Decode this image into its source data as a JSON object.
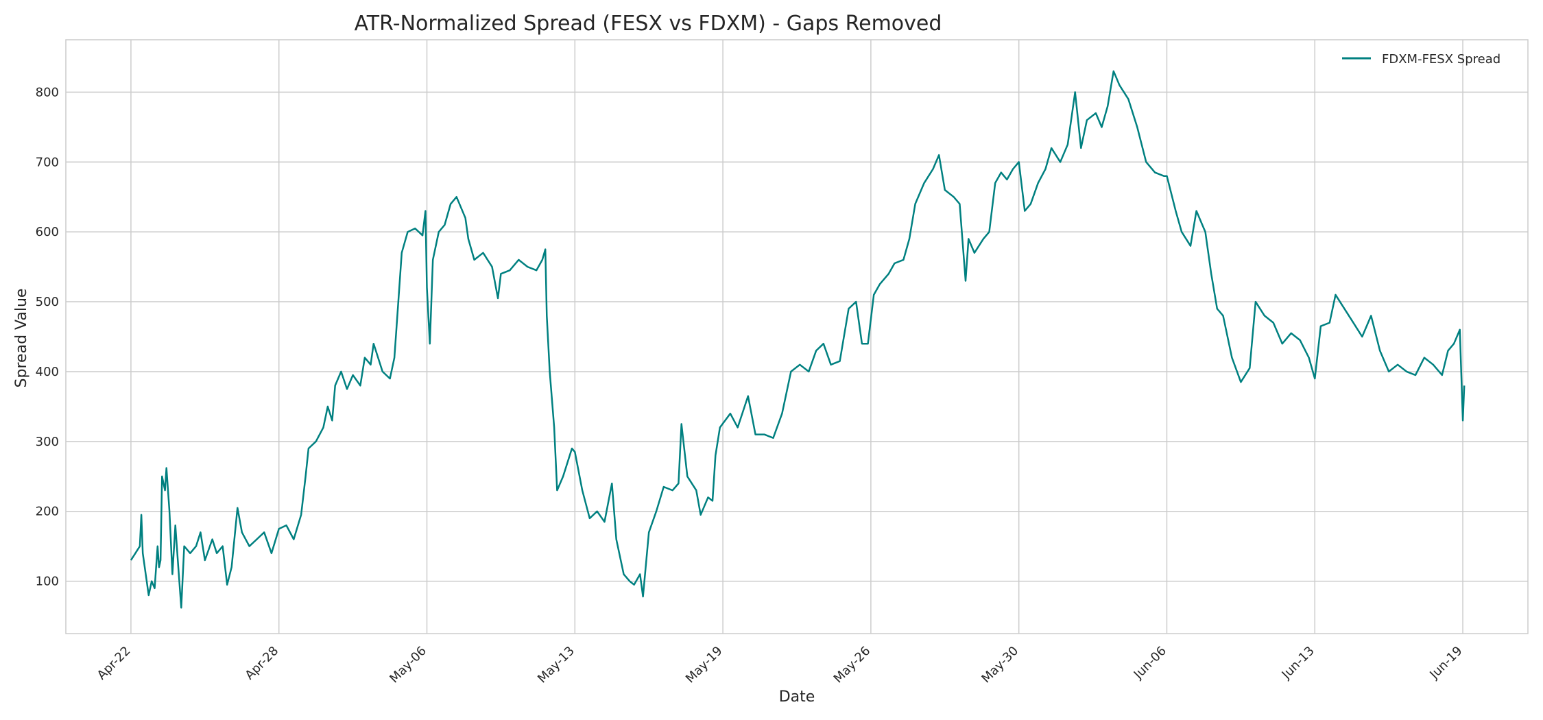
{
  "chart_data": {
    "type": "line",
    "title": "ATR-Normalized Spread (FESX vs FDXM) - Gaps Removed",
    "xlabel": "Date",
    "ylabel": "Spread Value",
    "x_unit": "bar index (gaps removed, 9 equal segments between labelled ticks)",
    "xlim": [
      -0.44,
      9.44
    ],
    "ylim": [
      25,
      875
    ],
    "x_ticks": [
      {
        "pos": 0,
        "label": "Apr-22"
      },
      {
        "pos": 1,
        "label": "Apr-28"
      },
      {
        "pos": 2,
        "label": "May-06"
      },
      {
        "pos": 3,
        "label": "May-13"
      },
      {
        "pos": 4,
        "label": "May-19"
      },
      {
        "pos": 5,
        "label": "May-26"
      },
      {
        "pos": 6,
        "label": "May-30"
      },
      {
        "pos": 7,
        "label": "Jun-06"
      },
      {
        "pos": 8,
        "label": "Jun-13"
      },
      {
        "pos": 9,
        "label": "Jun-19"
      }
    ],
    "y_ticks": [
      100,
      200,
      300,
      400,
      500,
      600,
      700,
      800
    ],
    "grid": true,
    "legend": {
      "position": "top-right"
    },
    "series": [
      {
        "name": "FDXM-FESX Spread",
        "color": "#008080",
        "points": [
          [
            0.0,
            130
          ],
          [
            0.03,
            140
          ],
          [
            0.06,
            150
          ],
          [
            0.07,
            195
          ],
          [
            0.08,
            140
          ],
          [
            0.1,
            110
          ],
          [
            0.12,
            80
          ],
          [
            0.14,
            100
          ],
          [
            0.16,
            90
          ],
          [
            0.18,
            150
          ],
          [
            0.19,
            120
          ],
          [
            0.2,
            130
          ],
          [
            0.21,
            250
          ],
          [
            0.23,
            230
          ],
          [
            0.24,
            262
          ],
          [
            0.26,
            200
          ],
          [
            0.28,
            110
          ],
          [
            0.3,
            180
          ],
          [
            0.32,
            120
          ],
          [
            0.34,
            62
          ],
          [
            0.36,
            150
          ],
          [
            0.4,
            140
          ],
          [
            0.44,
            150
          ],
          [
            0.47,
            170
          ],
          [
            0.5,
            130
          ],
          [
            0.55,
            160
          ],
          [
            0.58,
            140
          ],
          [
            0.62,
            150
          ],
          [
            0.65,
            95
          ],
          [
            0.68,
            120
          ],
          [
            0.72,
            205
          ],
          [
            0.75,
            170
          ],
          [
            0.8,
            150
          ],
          [
            0.85,
            160
          ],
          [
            0.9,
            170
          ],
          [
            0.95,
            140
          ],
          [
            1.0,
            175
          ],
          [
            1.05,
            180
          ],
          [
            1.1,
            160
          ],
          [
            1.15,
            195
          ],
          [
            1.18,
            250
          ],
          [
            1.2,
            290
          ],
          [
            1.25,
            300
          ],
          [
            1.3,
            320
          ],
          [
            1.33,
            350
          ],
          [
            1.36,
            330
          ],
          [
            1.38,
            380
          ],
          [
            1.42,
            400
          ],
          [
            1.46,
            375
          ],
          [
            1.5,
            395
          ],
          [
            1.55,
            380
          ],
          [
            1.58,
            420
          ],
          [
            1.62,
            410
          ],
          [
            1.64,
            440
          ],
          [
            1.7,
            400
          ],
          [
            1.75,
            390
          ],
          [
            1.78,
            420
          ],
          [
            1.8,
            480
          ],
          [
            1.83,
            570
          ],
          [
            1.87,
            600
          ],
          [
            1.92,
            605
          ],
          [
            1.97,
            595
          ],
          [
            1.99,
            630
          ],
          [
            2.0,
            520
          ],
          [
            2.02,
            440
          ],
          [
            2.04,
            560
          ],
          [
            2.08,
            600
          ],
          [
            2.12,
            610
          ],
          [
            2.16,
            640
          ],
          [
            2.2,
            650
          ],
          [
            2.26,
            620
          ],
          [
            2.28,
            590
          ],
          [
            2.32,
            560
          ],
          [
            2.38,
            570
          ],
          [
            2.44,
            550
          ],
          [
            2.48,
            505
          ],
          [
            2.5,
            540
          ],
          [
            2.56,
            545
          ],
          [
            2.62,
            560
          ],
          [
            2.68,
            550
          ],
          [
            2.74,
            545
          ],
          [
            2.78,
            560
          ],
          [
            2.8,
            575
          ],
          [
            2.81,
            480
          ],
          [
            2.83,
            400
          ],
          [
            2.86,
            320
          ],
          [
            2.88,
            230
          ],
          [
            2.92,
            250
          ],
          [
            2.98,
            290
          ],
          [
            3.0,
            285
          ],
          [
            3.05,
            230
          ],
          [
            3.1,
            190
          ],
          [
            3.15,
            200
          ],
          [
            3.2,
            185
          ],
          [
            3.25,
            240
          ],
          [
            3.28,
            160
          ],
          [
            3.33,
            110
          ],
          [
            3.37,
            100
          ],
          [
            3.4,
            95
          ],
          [
            3.44,
            110
          ],
          [
            3.46,
            78
          ],
          [
            3.5,
            170
          ],
          [
            3.55,
            200
          ],
          [
            3.6,
            235
          ],
          [
            3.66,
            230
          ],
          [
            3.7,
            240
          ],
          [
            3.72,
            325
          ],
          [
            3.76,
            250
          ],
          [
            3.82,
            230
          ],
          [
            3.85,
            195
          ],
          [
            3.9,
            220
          ],
          [
            3.93,
            215
          ],
          [
            3.95,
            280
          ],
          [
            3.98,
            320
          ],
          [
            4.05,
            340
          ],
          [
            4.1,
            320
          ],
          [
            4.17,
            365
          ],
          [
            4.22,
            310
          ],
          [
            4.28,
            310
          ],
          [
            4.34,
            305
          ],
          [
            4.4,
            340
          ],
          [
            4.46,
            400
          ],
          [
            4.52,
            410
          ],
          [
            4.58,
            400
          ],
          [
            4.63,
            430
          ],
          [
            4.68,
            440
          ],
          [
            4.73,
            410
          ],
          [
            4.79,
            415
          ],
          [
            4.85,
            490
          ],
          [
            4.9,
            500
          ],
          [
            4.94,
            440
          ],
          [
            4.98,
            440
          ],
          [
            5.02,
            510
          ],
          [
            5.06,
            525
          ],
          [
            5.12,
            540
          ],
          [
            5.16,
            555
          ],
          [
            5.22,
            560
          ],
          [
            5.26,
            590
          ],
          [
            5.3,
            640
          ],
          [
            5.36,
            670
          ],
          [
            5.42,
            690
          ],
          [
            5.46,
            710
          ],
          [
            5.5,
            660
          ],
          [
            5.56,
            650
          ],
          [
            5.6,
            640
          ],
          [
            5.64,
            530
          ],
          [
            5.66,
            590
          ],
          [
            5.7,
            570
          ],
          [
            5.76,
            590
          ],
          [
            5.8,
            600
          ],
          [
            5.84,
            670
          ],
          [
            5.88,
            685
          ],
          [
            5.92,
            675
          ],
          [
            5.96,
            690
          ],
          [
            6.0,
            700
          ],
          [
            6.04,
            630
          ],
          [
            6.08,
            640
          ],
          [
            6.13,
            670
          ],
          [
            6.18,
            690
          ],
          [
            6.22,
            720
          ],
          [
            6.28,
            700
          ],
          [
            6.33,
            725
          ],
          [
            6.38,
            800
          ],
          [
            6.42,
            720
          ],
          [
            6.46,
            760
          ],
          [
            6.52,
            770
          ],
          [
            6.56,
            750
          ],
          [
            6.6,
            780
          ],
          [
            6.64,
            830
          ],
          [
            6.68,
            810
          ],
          [
            6.74,
            790
          ],
          [
            6.8,
            750
          ],
          [
            6.86,
            700
          ],
          [
            6.92,
            685
          ],
          [
            6.98,
            680
          ],
          [
            7.0,
            680
          ],
          [
            7.06,
            630
          ],
          [
            7.1,
            600
          ],
          [
            7.16,
            580
          ],
          [
            7.2,
            630
          ],
          [
            7.26,
            600
          ],
          [
            7.3,
            540
          ],
          [
            7.34,
            490
          ],
          [
            7.38,
            480
          ],
          [
            7.44,
            420
          ],
          [
            7.5,
            385
          ],
          [
            7.56,
            405
          ],
          [
            7.6,
            500
          ],
          [
            7.66,
            480
          ],
          [
            7.72,
            470
          ],
          [
            7.78,
            440
          ],
          [
            7.84,
            455
          ],
          [
            7.9,
            445
          ],
          [
            7.96,
            420
          ],
          [
            8.0,
            390
          ],
          [
            8.04,
            465
          ],
          [
            8.1,
            470
          ],
          [
            8.14,
            510
          ],
          [
            8.2,
            490
          ],
          [
            8.26,
            470
          ],
          [
            8.32,
            450
          ],
          [
            8.38,
            480
          ],
          [
            8.44,
            430
          ],
          [
            8.5,
            400
          ],
          [
            8.56,
            410
          ],
          [
            8.62,
            400
          ],
          [
            8.68,
            395
          ],
          [
            8.74,
            420
          ],
          [
            8.8,
            410
          ],
          [
            8.86,
            395
          ],
          [
            8.9,
            430
          ],
          [
            8.94,
            440
          ],
          [
            8.98,
            460
          ],
          [
            9.0,
            330
          ],
          [
            9.01,
            380
          ]
        ]
      }
    ]
  }
}
